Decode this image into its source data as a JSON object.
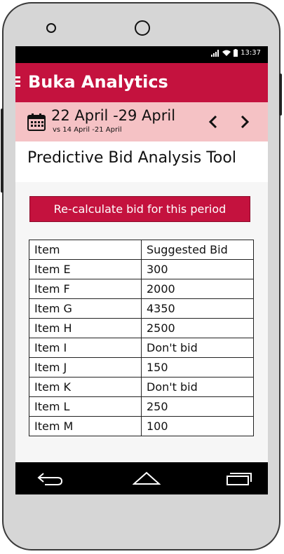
{
  "status_bar": {
    "time": "13:37"
  },
  "app": {
    "title": "Buka Analytics"
  },
  "date_bar": {
    "range": "22 April -29 April",
    "comparison": "vs 14 April -21 April"
  },
  "page": {
    "title": "Predictive Bid Analysis Tool"
  },
  "actions": {
    "recalculate_label": "Re-calculate bid for this period"
  },
  "table": {
    "headers": [
      "Item",
      "Suggested Bid"
    ],
    "rows": [
      [
        "Item E",
        "300"
      ],
      [
        "Item F",
        "2000"
      ],
      [
        "Item G",
        "4350"
      ],
      [
        "Item H",
        "2500"
      ],
      [
        "Item I",
        "Don't bid"
      ],
      [
        "Item J",
        "150"
      ],
      [
        "Item K",
        "Don't bid"
      ],
      [
        "Item L",
        "250"
      ],
      [
        "Item M",
        "100"
      ]
    ]
  },
  "colors": {
    "accent": "#c4123e",
    "date_bar_bg": "#f5c2c5"
  }
}
